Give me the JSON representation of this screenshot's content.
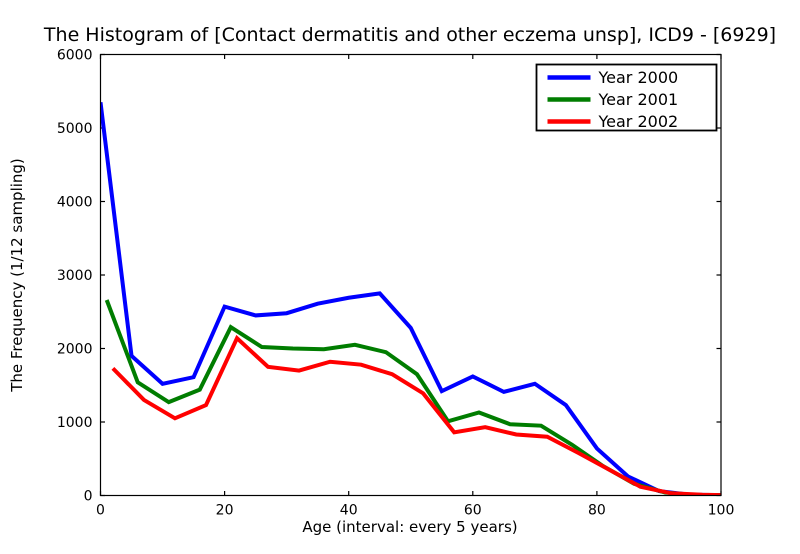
{
  "title": "The Histogram of [Contact dermatitis and other eczema unsp], ICD9 - [6929]",
  "chart_data": {
    "type": "line",
    "title": "The Histogram of [Contact dermatitis and other eczema unsp], ICD9 - [6929]",
    "xlabel": "Age (interval: every 5 years)",
    "ylabel": "The Frequency (1/12 sampling)",
    "xlim": [
      0,
      100
    ],
    "ylim": [
      0,
      6000
    ],
    "x_ticks": [
      0,
      20,
      40,
      60,
      80,
      100
    ],
    "y_ticks": [
      0,
      1000,
      2000,
      3000,
      4000,
      5000,
      6000
    ],
    "grid": false,
    "legend_position": "upper right",
    "age_interval": 5,
    "series": [
      {
        "name": "Year 2000",
        "color": "#0000ff",
        "x": [
          0,
          5,
          10,
          15,
          20,
          25,
          30,
          35,
          40,
          45,
          50,
          55,
          60,
          65,
          70,
          75,
          80,
          85,
          90,
          95,
          100
        ],
        "values": [
          5350,
          1900,
          1520,
          1610,
          2570,
          2450,
          2480,
          2610,
          2690,
          2750,
          2280,
          1420,
          1620,
          1410,
          1520,
          1230,
          640,
          260,
          60,
          10,
          5
        ]
      },
      {
        "name": "Year 2001",
        "color": "#007d00",
        "x": [
          1,
          6,
          11,
          16,
          21,
          26,
          31,
          36,
          41,
          46,
          51,
          56,
          61,
          66,
          71,
          76,
          81,
          86,
          91,
          96,
          100
        ],
        "values": [
          2660,
          1540,
          1270,
          1440,
          2290,
          2020,
          2000,
          1990,
          2050,
          1950,
          1650,
          1010,
          1130,
          970,
          950,
          690,
          400,
          160,
          40,
          5,
          5
        ]
      },
      {
        "name": "Year 2002",
        "color": "#ff0000",
        "x": [
          2,
          7,
          12,
          17,
          22,
          27,
          32,
          37,
          42,
          47,
          52,
          57,
          62,
          67,
          72,
          77,
          82,
          87,
          92,
          97,
          100
        ],
        "values": [
          1730,
          1300,
          1050,
          1230,
          2140,
          1750,
          1700,
          1820,
          1780,
          1650,
          1390,
          860,
          930,
          830,
          800,
          580,
          350,
          120,
          30,
          10,
          5
        ]
      }
    ]
  }
}
